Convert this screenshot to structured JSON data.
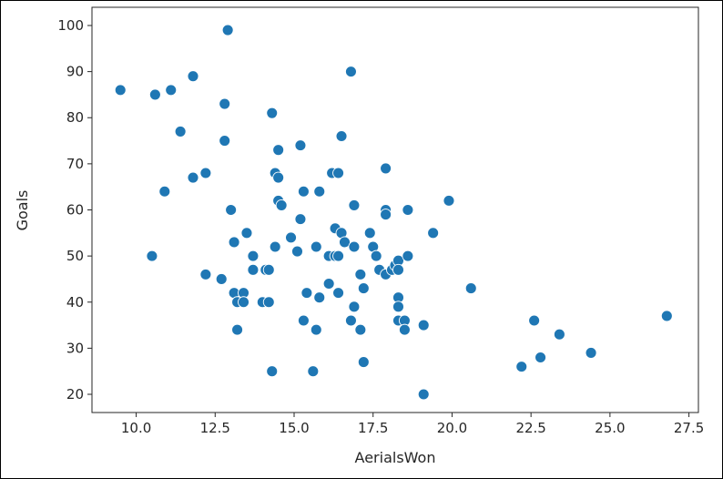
{
  "chart_data": {
    "type": "scatter",
    "title": "",
    "xlabel": "AerialsWon",
    "ylabel": "Goals",
    "xlim": [
      8.6,
      27.8
    ],
    "ylim": [
      16.05,
      103.95
    ],
    "xticks": [
      "10.0",
      "12.5",
      "15.0",
      "17.5",
      "20.0",
      "22.5",
      "25.0",
      "27.5"
    ],
    "xtick_values": [
      10.0,
      12.5,
      15.0,
      17.5,
      20.0,
      22.5,
      25.0,
      27.5
    ],
    "yticks": [
      "20",
      "30",
      "40",
      "50",
      "60",
      "70",
      "80",
      "90",
      "100"
    ],
    "ytick_values": [
      20,
      30,
      40,
      50,
      60,
      70,
      80,
      90,
      100
    ],
    "grid": false,
    "marker_color": "#1f77b4",
    "marker_edge_color": "#ffffff",
    "points": [
      [
        9.5,
        86
      ],
      [
        10.5,
        50
      ],
      [
        10.6,
        85
      ],
      [
        10.9,
        64
      ],
      [
        11.1,
        86
      ],
      [
        11.4,
        77
      ],
      [
        11.8,
        89
      ],
      [
        11.8,
        67
      ],
      [
        12.2,
        68
      ],
      [
        12.2,
        46
      ],
      [
        12.7,
        45
      ],
      [
        12.8,
        83
      ],
      [
        12.8,
        75
      ],
      [
        12.9,
        99
      ],
      [
        13.0,
        60
      ],
      [
        13.1,
        53
      ],
      [
        13.1,
        42
      ],
      [
        13.2,
        40
      ],
      [
        13.2,
        34
      ],
      [
        13.4,
        42
      ],
      [
        13.4,
        40
      ],
      [
        13.5,
        55
      ],
      [
        13.7,
        50
      ],
      [
        13.7,
        47
      ],
      [
        14.0,
        40
      ],
      [
        14.1,
        47
      ],
      [
        14.2,
        47
      ],
      [
        14.2,
        40
      ],
      [
        14.3,
        81
      ],
      [
        14.3,
        25
      ],
      [
        14.4,
        68
      ],
      [
        14.4,
        52
      ],
      [
        14.5,
        73
      ],
      [
        14.5,
        67
      ],
      [
        14.5,
        62
      ],
      [
        14.6,
        61
      ],
      [
        14.9,
        54
      ],
      [
        15.1,
        51
      ],
      [
        15.2,
        74
      ],
      [
        15.2,
        58
      ],
      [
        15.3,
        64
      ],
      [
        15.3,
        36
      ],
      [
        15.4,
        42
      ],
      [
        15.6,
        25
      ],
      [
        15.7,
        52
      ],
      [
        15.7,
        34
      ],
      [
        15.8,
        64
      ],
      [
        15.8,
        41
      ],
      [
        16.1,
        50
      ],
      [
        16.1,
        44
      ],
      [
        16.2,
        68
      ],
      [
        16.3,
        56
      ],
      [
        16.3,
        50
      ],
      [
        16.4,
        68
      ],
      [
        16.4,
        50
      ],
      [
        16.4,
        42
      ],
      [
        16.5,
        76
      ],
      [
        16.5,
        55
      ],
      [
        16.6,
        53
      ],
      [
        16.8,
        90
      ],
      [
        16.8,
        36
      ],
      [
        16.9,
        61
      ],
      [
        16.9,
        52
      ],
      [
        16.9,
        39
      ],
      [
        17.1,
        46
      ],
      [
        17.1,
        34
      ],
      [
        17.2,
        43
      ],
      [
        17.2,
        27
      ],
      [
        17.4,
        55
      ],
      [
        17.5,
        52
      ],
      [
        17.6,
        50
      ],
      [
        17.7,
        47
      ],
      [
        17.9,
        69
      ],
      [
        17.9,
        60
      ],
      [
        17.9,
        59
      ],
      [
        17.9,
        46
      ],
      [
        18.1,
        47
      ],
      [
        18.2,
        48
      ],
      [
        18.3,
        49
      ],
      [
        18.3,
        47
      ],
      [
        18.3,
        41
      ],
      [
        18.3,
        39
      ],
      [
        18.3,
        36
      ],
      [
        18.5,
        36
      ],
      [
        18.5,
        34
      ],
      [
        18.6,
        60
      ],
      [
        18.6,
        50
      ],
      [
        19.1,
        35
      ],
      [
        19.1,
        20
      ],
      [
        19.4,
        55
      ],
      [
        19.9,
        62
      ],
      [
        20.6,
        43
      ],
      [
        22.2,
        26
      ],
      [
        22.6,
        36
      ],
      [
        22.8,
        28
      ],
      [
        23.4,
        33
      ],
      [
        24.4,
        29
      ],
      [
        26.8,
        37
      ]
    ]
  }
}
